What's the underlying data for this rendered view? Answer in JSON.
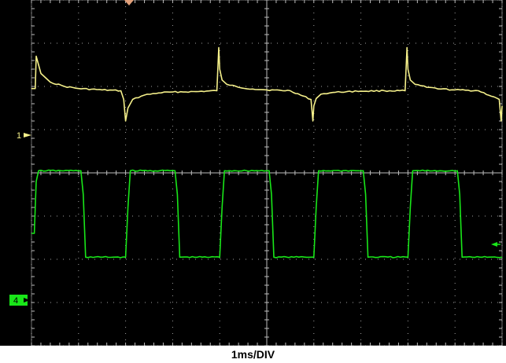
{
  "chart_data": {
    "type": "line",
    "xlabel": "1ms/DIV",
    "x_unit": "ms",
    "x_divisions": 10,
    "y_divisions": 8,
    "xlim": [
      0,
      10
    ],
    "ylim": [
      -4,
      4
    ],
    "grid": true,
    "background": "#000000",
    "grid_color": "#bdbdbd",
    "series": [
      {
        "channel": "1",
        "color": "#f5f08a",
        "ground_level_div": 1.85,
        "x": [
          0,
          0.08,
          0.1,
          0.2,
          0.4,
          0.7,
          1.0,
          1.5,
          1.9,
          1.96,
          2.0,
          2.05,
          2.15,
          2.4,
          2.7,
          3.0,
          3.5,
          3.94,
          3.98,
          4.0,
          4.05,
          4.15,
          4.4,
          4.7,
          5.0,
          5.5,
          5.94,
          5.98,
          6.0,
          6.05,
          6.15,
          6.4,
          6.7,
          7.0,
          7.5,
          7.94,
          7.98,
          8.0,
          8.05,
          8.15,
          8.4,
          8.7,
          9.0,
          9.5,
          9.94,
          9.98,
          10.0
        ],
        "y": [
          1.95,
          1.95,
          2.7,
          2.3,
          2.1,
          2.0,
          1.95,
          1.92,
          1.9,
          1.7,
          1.2,
          1.5,
          1.7,
          1.8,
          1.85,
          1.87,
          1.88,
          1.9,
          2.9,
          2.4,
          2.15,
          2.05,
          1.98,
          1.94,
          1.92,
          1.9,
          1.7,
          1.2,
          1.55,
          1.72,
          1.82,
          1.86,
          1.88,
          1.89,
          1.9,
          1.9,
          2.9,
          2.4,
          2.15,
          2.05,
          1.98,
          1.94,
          1.92,
          1.9,
          1.7,
          1.2,
          1.55
        ]
      },
      {
        "channel": "4",
        "color": "#19e619",
        "ground_level_div": -2.05,
        "x": [
          0,
          0.06,
          0.1,
          0.15,
          1.05,
          1.1,
          1.15,
          2.0,
          2.05,
          2.1,
          3.05,
          3.1,
          3.15,
          4.0,
          4.05,
          4.1,
          5.05,
          5.1,
          5.15,
          6.0,
          6.05,
          6.1,
          7.05,
          7.1,
          7.15,
          8.0,
          8.05,
          8.1,
          9.05,
          9.1,
          9.15,
          10.0
        ],
        "y": [
          -1.4,
          -1.4,
          -0.2,
          0.05,
          0.05,
          -0.5,
          -1.95,
          -1.95,
          -0.8,
          0.05,
          0.05,
          -0.5,
          -1.95,
          -1.95,
          -0.8,
          0.05,
          0.05,
          -0.5,
          -1.95,
          -1.95,
          -0.8,
          0.05,
          0.05,
          -0.5,
          -1.95,
          -1.95,
          -0.8,
          0.05,
          0.05,
          -0.5,
          -1.95,
          -1.95
        ]
      }
    ]
  },
  "markers": {
    "ch1_label": "1",
    "ch4_label": "4",
    "ch1_color": "#f5f08a",
    "ch4_color": "#19e619",
    "trigger_color": "#e2a07a"
  }
}
